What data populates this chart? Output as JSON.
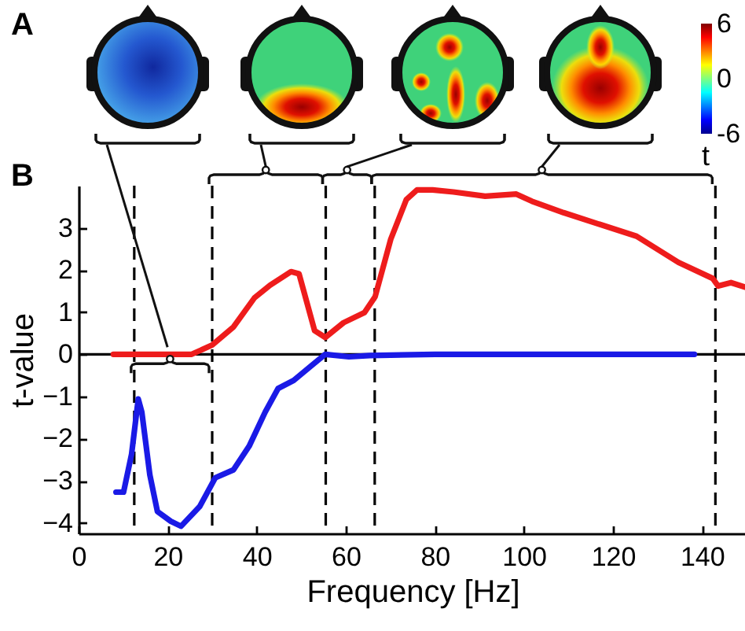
{
  "chart_data": [
    {
      "type": "other",
      "title": "A",
      "clabel": "t",
      "annotations": [
        "6",
        "0",
        "-6"
      ]
    },
    {
      "type": "line",
      "title": "B",
      "xlabel": "Frequency [Hz]",
      "ylabel": "t-value",
      "xlim": [
        0,
        150
      ],
      "xticks": [
        0,
        20,
        40,
        60,
        80,
        100,
        120,
        140
      ],
      "ylim": [
        -4.25,
        4
      ],
      "yticks": [
        -4,
        -3,
        -2,
        -1,
        0,
        1,
        2,
        3
      ],
      "series": [
        {
          "color": "#ee1c1c",
          "x": [
            7.8,
            25.4,
            30,
            34.8,
            39.5,
            43,
            47.7,
            49.5,
            53,
            55.4,
            59.5,
            64.2,
            66.6,
            70.1,
            73.6,
            76,
            79.5,
            84.2,
            91.3,
            98.3,
            101.8,
            108.9,
            117.1,
            125.3,
            134.7,
            142.4,
            143.6,
            146.5,
            150
          ],
          "values": [
            0,
            0,
            0.22,
            0.65,
            1.34,
            1.64,
            1.96,
            1.91,
            0.56,
            0.4,
            0.75,
            0.99,
            1.37,
            2.73,
            3.67,
            3.9,
            3.9,
            3.85,
            3.75,
            3.8,
            3.63,
            3.36,
            3.08,
            2.8,
            2.18,
            1.8,
            1.62,
            1.7,
            1.58
          ]
        },
        {
          "color": "#1a1ae6",
          "x": [
            8.4,
            10.1,
            11.9,
            13.4,
            14.2,
            16,
            17.7,
            20.7,
            23,
            27.2,
            30.7,
            34.8,
            38.3,
            41.9,
            44.8,
            48.3,
            52.5,
            55.4,
            60.7,
            65.4,
            80,
            138.3
          ],
          "values": [
            -3.27,
            -3.27,
            -2.37,
            -1.06,
            -1.37,
            -2.86,
            -3.73,
            -3.96,
            -4.08,
            -3.61,
            -2.93,
            -2.74,
            -2.18,
            -1.37,
            -0.81,
            -0.62,
            -0.25,
            0,
            -0.06,
            -0.03,
            0,
            0
          ]
        }
      ],
      "ref_lines": [
        {
          "axis": "y",
          "value": 0,
          "color": "#000000"
        },
        {
          "axis": "x",
          "value": 12.5,
          "line_style": "dashed",
          "color": "#000000"
        },
        {
          "axis": "x",
          "value": 30,
          "line_style": "dashed",
          "color": "#000000"
        },
        {
          "axis": "x",
          "value": 55.5,
          "line_style": "dashed",
          "color": "#000000"
        },
        {
          "axis": "x",
          "value": 66.5,
          "line_style": "dashed",
          "color": "#000000"
        },
        {
          "axis": "x",
          "value": 143,
          "line_style": "dashed",
          "color": "#000000"
        }
      ]
    }
  ]
}
